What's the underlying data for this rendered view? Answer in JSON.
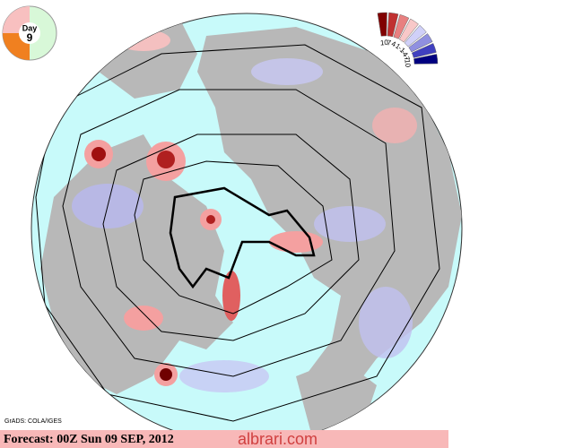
{
  "dial": {
    "label": "Day",
    "day": "9"
  },
  "legend": {
    "labels": [
      10,
      7,
      4,
      1,
      -1,
      -4,
      -7,
      -10
    ]
  },
  "credit": "GrADS: COLA/IGES",
  "footer": {
    "forecast": "Forecast: 00Z Sun 09 SEP, 2012",
    "watermark": "albrari.com"
  }
}
